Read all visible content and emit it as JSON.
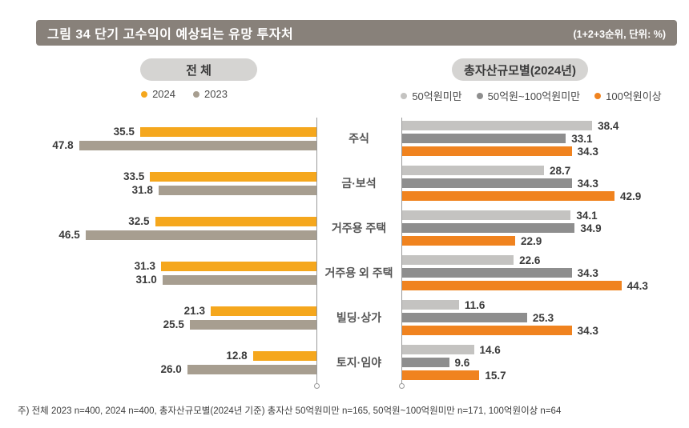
{
  "header": {
    "title": "그림 34  단기 고수익이 예상되는 유망 투자처",
    "unit_note": "(1+2+3순위, 단위:  %)"
  },
  "panels": {
    "left": {
      "title": "전 체"
    },
    "right": {
      "title": "총자산규모별(2024년)"
    }
  },
  "chart_data": {
    "type": "bar",
    "orientation": "horizontal-mirrored-left-panel",
    "categories": [
      "주식",
      "금·보석",
      "거주용 주택",
      "거주용 외 주택",
      "빌딩·상가",
      "토지·임야"
    ],
    "xlim": [
      0,
      50
    ],
    "left_panel": {
      "title": "전 체",
      "series": [
        {
          "name": "2024",
          "color": "#f5a71d",
          "values": [
            35.5,
            33.5,
            32.5,
            31.3,
            21.3,
            12.8
          ]
        },
        {
          "name": "2023",
          "color": "#a79e90",
          "values": [
            47.8,
            31.8,
            46.5,
            31.0,
            25.5,
            26.0
          ]
        }
      ]
    },
    "right_panel": {
      "title": "총자산규모별(2024년)",
      "series": [
        {
          "name": "50억원미만",
          "color": "#c4c3c1",
          "values": [
            38.4,
            28.7,
            34.1,
            22.6,
            11.6,
            14.6
          ]
        },
        {
          "name": "50억원~100억원미만",
          "color": "#8e8e8e",
          "values": [
            33.1,
            34.3,
            34.9,
            34.3,
            25.3,
            9.6
          ]
        },
        {
          "name": "100억원이상",
          "color": "#f0831f",
          "values": [
            34.3,
            42.9,
            22.9,
            44.3,
            34.3,
            15.7
          ]
        }
      ]
    }
  },
  "colors": {
    "title_bar_bg": "#88817a",
    "pill_bg": "#d5d4d2",
    "axis": "#9a9a9a"
  },
  "footnote": "주) 전체 2023 n=400, 2024 n=400, 총자산규모별(2024년 기준) 총자산 50억원미만 n=165, 50억원~100억원미만 n=171, 100억원이상 n=64"
}
